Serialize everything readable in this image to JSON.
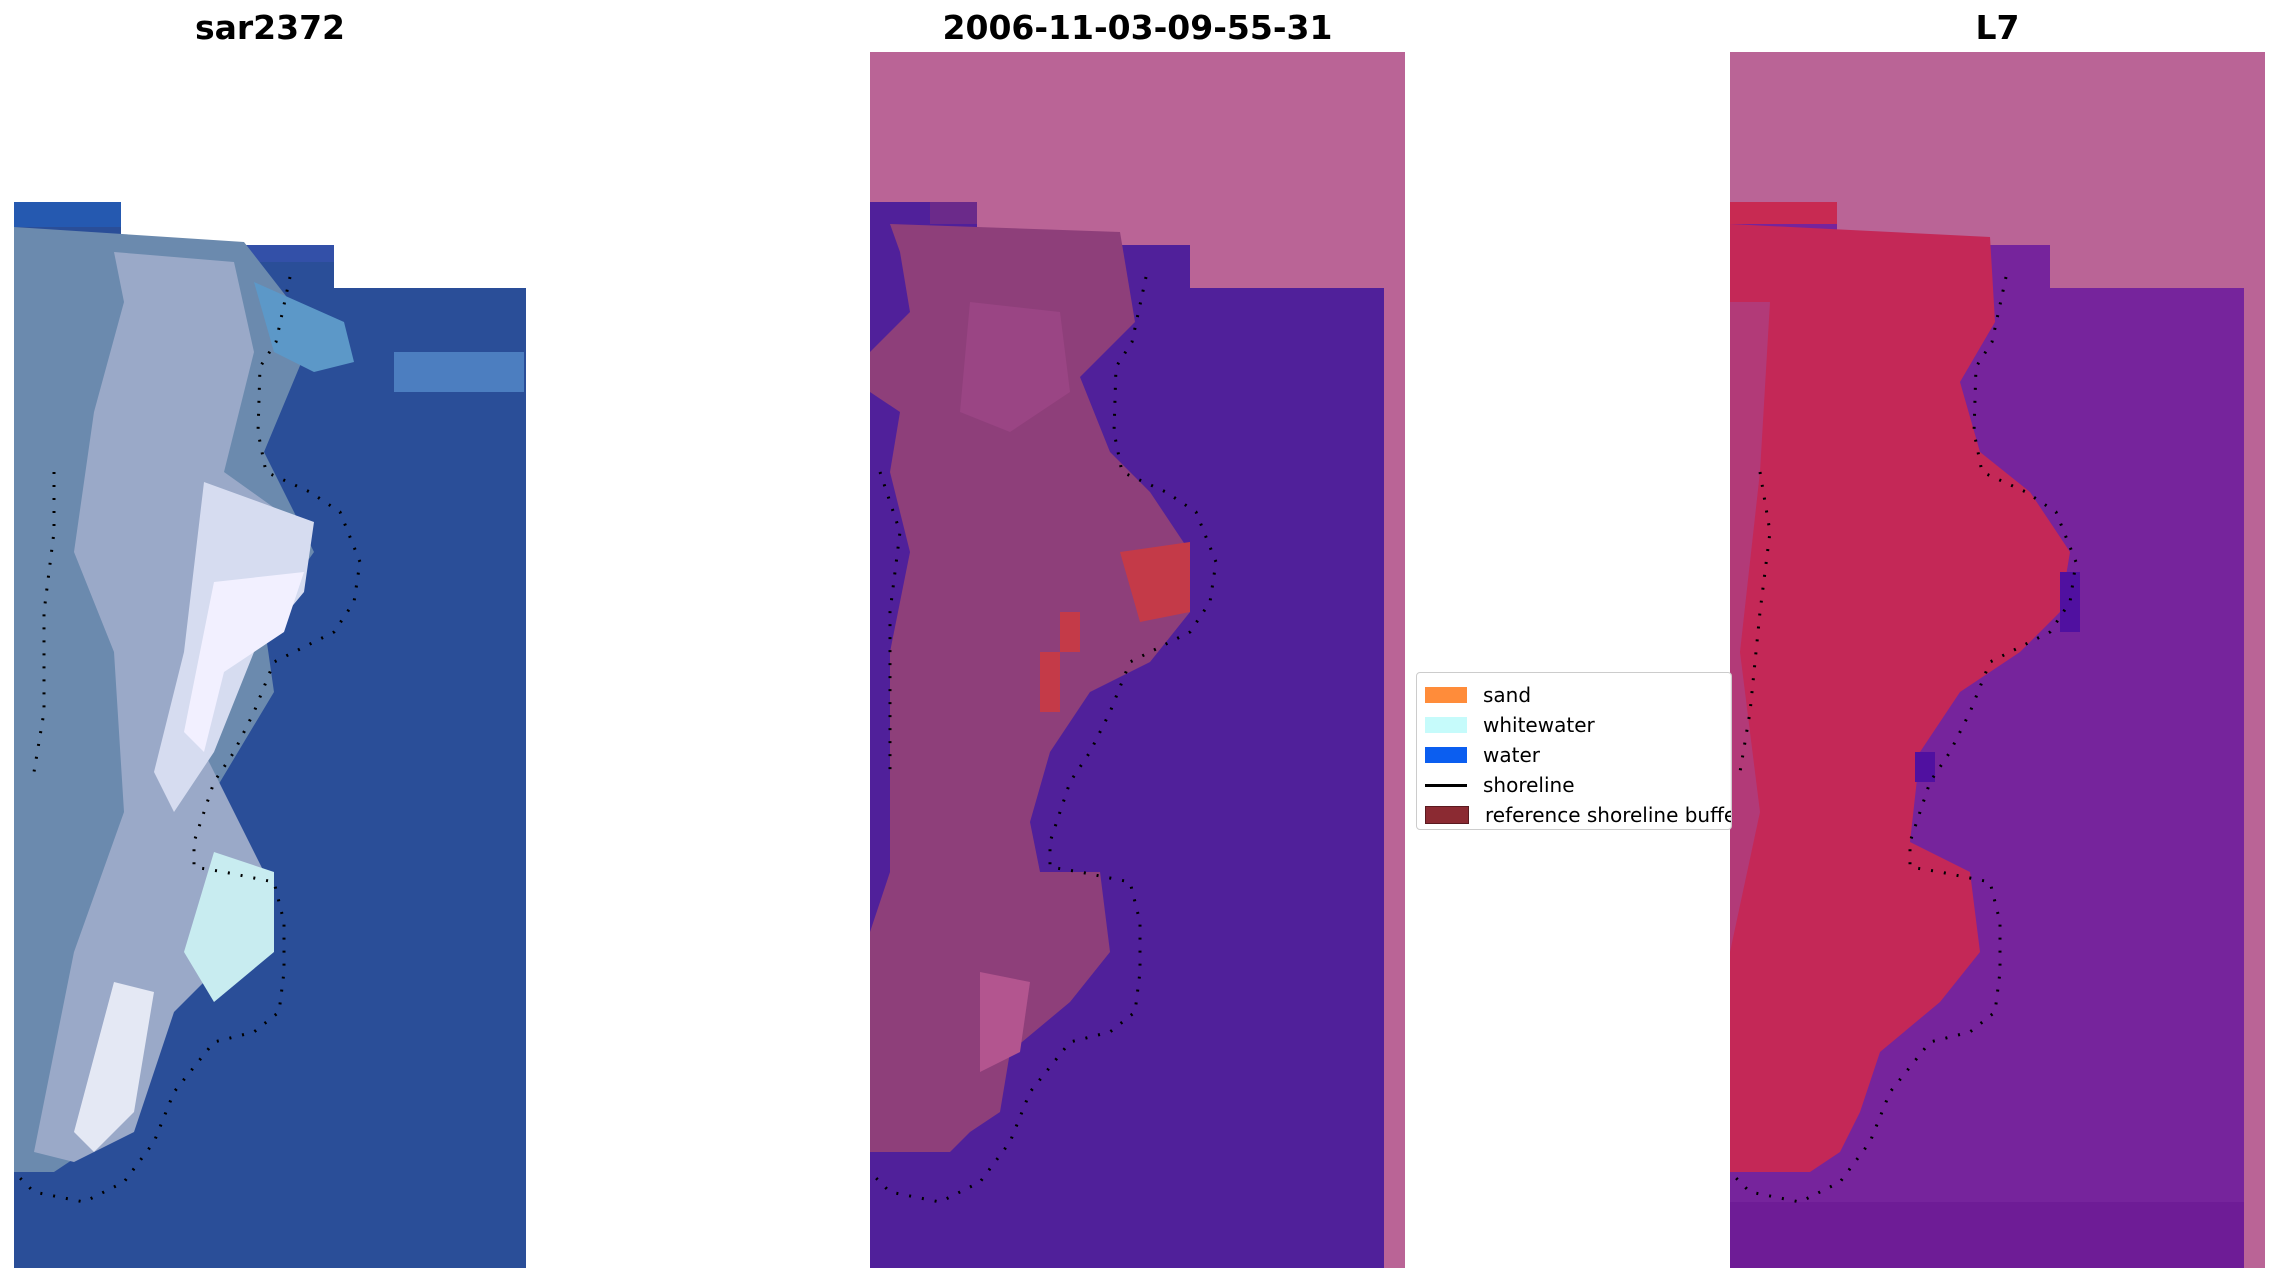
{
  "panels": [
    {
      "title": "sar2372"
    },
    {
      "title": "2006-11-03-09-55-31"
    },
    {
      "title": "L7"
    }
  ],
  "legend": {
    "items": [
      {
        "label": "sand",
        "color": "#ff8c3a",
        "kind": "patch"
      },
      {
        "label": "whitewater",
        "color": "#c6fbfb",
        "kind": "patch"
      },
      {
        "label": "water",
        "color": "#0b5ef0",
        "kind": "patch"
      },
      {
        "label": "shoreline",
        "color": "#000000",
        "kind": "line"
      },
      {
        "label": "reference shoreline buffer",
        "color": "#8b2a32",
        "kind": "patch"
      }
    ]
  },
  "colors": {
    "nodata_overlay": "#ba6496",
    "water_class": "#50209a",
    "land_blend": "#8e3f7a",
    "buffer_red": "#c43a48",
    "rgb_water": "#2a4e98",
    "l7_land": "#c42857",
    "l7_water": "#76249c"
  }
}
